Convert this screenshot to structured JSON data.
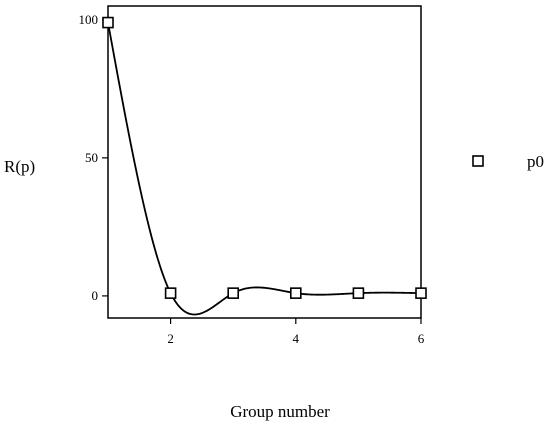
{
  "chart_data": {
    "type": "line",
    "title": "",
    "xlabel": "Group number",
    "ylabel": "R(p)",
    "xlim": [
      1,
      6
    ],
    "ylim": [
      -8,
      105
    ],
    "x_ticks": [
      2,
      4,
      6
    ],
    "y_ticks": [
      0,
      50,
      100
    ],
    "grid": false,
    "legend": "right",
    "series": [
      {
        "name": "p0",
        "marker": "square",
        "color": "#000000",
        "x": [
          1,
          2,
          3,
          4,
          5,
          6
        ],
        "y": [
          99,
          1,
          1,
          1,
          1,
          1
        ]
      }
    ]
  }
}
